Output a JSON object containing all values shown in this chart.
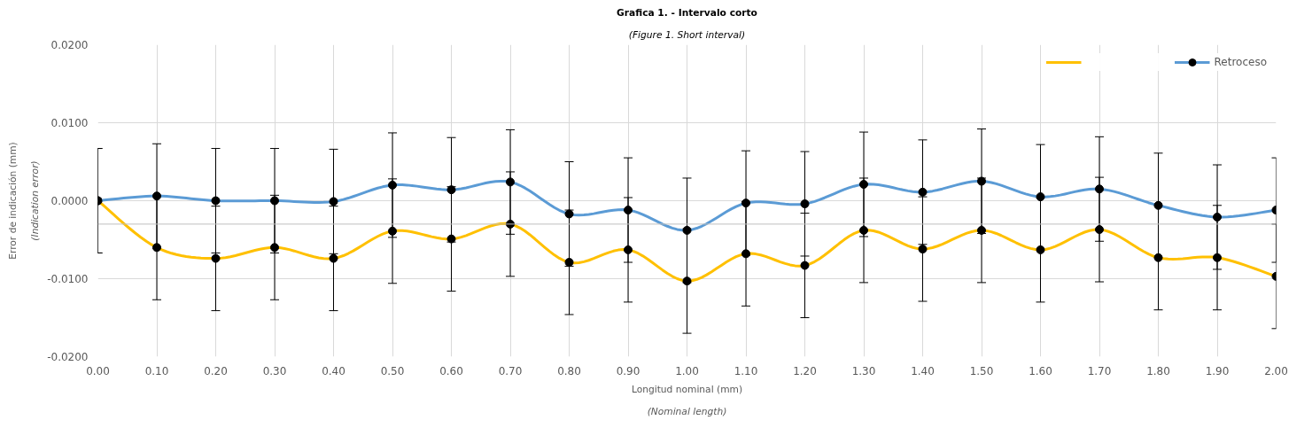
{
  "chart_data": {
    "type": "line",
    "title": "Grafica 1. - Intervalo corto",
    "subtitle": "(Figure 1. Short interval)",
    "xlabel": "Longitud nominal (mm)",
    "ylabel": "Error de indicación (mm)",
    "annotations": [
      "(Indication error)",
      "(Nominal length)"
    ],
    "x": [
      0.0,
      0.1,
      0.2,
      0.3,
      0.4,
      0.5,
      0.6,
      0.7,
      0.8,
      0.9,
      1.0,
      1.1,
      1.2,
      1.3,
      1.4,
      1.5,
      1.6,
      1.7,
      1.8,
      1.9,
      2.0
    ],
    "series": [
      {
        "color": "#ffc000",
        "values": [
          0.0,
          -0.006,
          -0.0074,
          -0.006,
          -0.0074,
          -0.0039,
          -0.0049,
          -0.003,
          -0.0079,
          -0.0063,
          -0.0103,
          -0.0068,
          -0.0083,
          -0.0038,
          -0.0062,
          -0.0038,
          -0.0063,
          -0.0037,
          -0.0073,
          -0.0073,
          -0.0097
        ],
        "errors": [
          0.0067,
          0.0067,
          0.0067,
          0.0067,
          0.0067,
          0.0067,
          0.0067,
          0.0067,
          0.0067,
          0.0067,
          0.0067,
          0.0067,
          0.0067,
          0.0067,
          0.0067,
          0.0067,
          0.0067,
          0.0067,
          0.0067,
          0.0067,
          0.0067
        ]
      },
      {
        "name": "Retroceso",
        "color": "#5b9bd5",
        "values": [
          0.0,
          0.0006,
          0.0,
          0.0,
          -0.0001,
          0.002,
          0.0014,
          0.0024,
          -0.0017,
          -0.0012,
          -0.0038,
          -0.0003,
          -0.0004,
          0.0021,
          0.0011,
          0.0025,
          0.0005,
          0.0015,
          -0.0006,
          -0.0021,
          -0.0012
        ],
        "errors": [
          0.0067,
          0.0067,
          0.0067,
          0.0067,
          0.0067,
          0.0067,
          0.0067,
          0.0067,
          0.0067,
          0.0067,
          0.0067,
          0.0067,
          0.0067,
          0.0067,
          0.0067,
          0.0067,
          0.0067,
          0.0067,
          0.0067,
          0.0067,
          0.0067
        ]
      }
    ],
    "xlim": [
      0,
      2
    ],
    "ylim": [
      -0.02,
      0.02
    ],
    "xticks": [
      {
        "value": 0,
        "label": "0.00"
      },
      {
        "value": 0.1,
        "label": "0.10"
      },
      {
        "value": 0.2,
        "label": "0.20"
      },
      {
        "value": 0.3,
        "label": "0.30"
      },
      {
        "value": 0.4,
        "label": "0.40"
      },
      {
        "value": 0.5,
        "label": "0.50"
      },
      {
        "value": 0.6,
        "label": "0.60"
      },
      {
        "value": 0.7,
        "label": "0.70"
      },
      {
        "value": 0.8,
        "label": "0.80"
      },
      {
        "value": 0.9,
        "label": "0.90"
      },
      {
        "value": 1,
        "label": "1.00"
      },
      {
        "value": 1.1,
        "label": "1.10"
      },
      {
        "value": 1.2,
        "label": "1.20"
      },
      {
        "value": 1.3,
        "label": "1.30"
      },
      {
        "value": 1.4,
        "label": "1.40"
      },
      {
        "value": 1.5,
        "label": "1.50"
      },
      {
        "value": 1.6,
        "label": "1.60"
      },
      {
        "value": 1.7,
        "label": "1.70"
      },
      {
        "value": 1.8,
        "label": "1.80"
      },
      {
        "value": 1.9,
        "label": "1.90"
      },
      {
        "value": 2,
        "label": "2.00"
      }
    ],
    "yticks": [
      {
        "value": -0.02,
        "label": "-0.0200"
      },
      {
        "value": -0.01,
        "label": "-0.0100"
      },
      {
        "value": 0,
        "label": "0.0000"
      },
      {
        "value": 0.01,
        "label": "0.0100"
      },
      {
        "value": 0.02,
        "label": "0.0200"
      }
    ],
    "ref_lines": [
      {
        "axis": "y",
        "value": -0.003,
        "color": "#bfbfbf"
      }
    ],
    "grid": true,
    "legend": "top right",
    "marker": "circle",
    "line_style": "solid"
  }
}
